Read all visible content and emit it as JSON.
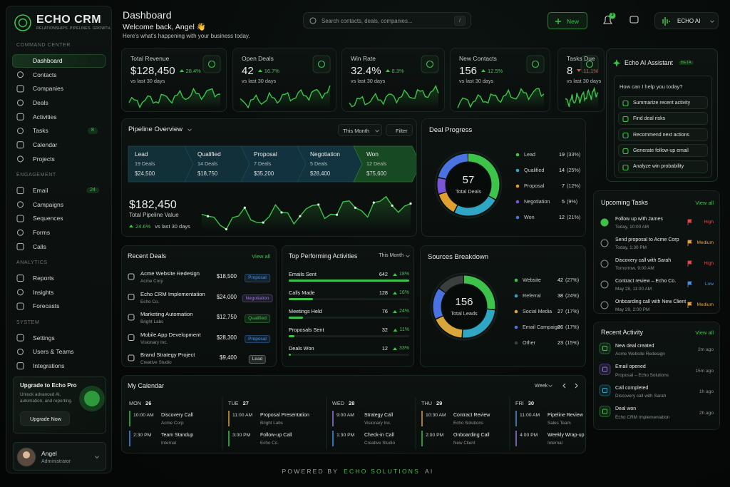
{
  "brand": {
    "name": "ECHO CRM",
    "tagline": "RELATIONSHIPS. PIPELINES. GROWTH."
  },
  "sidebar": {
    "sections": [
      {
        "title": "COMMAND CENTER",
        "items": [
          {
            "label": "Dashboard",
            "active": true
          },
          {
            "label": "Contacts"
          },
          {
            "label": "Companies"
          },
          {
            "label": "Deals"
          },
          {
            "label": "Activities"
          },
          {
            "label": "Tasks",
            "badge": 8
          },
          {
            "label": "Calendar"
          },
          {
            "label": "Projects"
          }
        ]
      },
      {
        "title": "ENGAGEMENT",
        "items": [
          {
            "label": "Email",
            "badge": 24
          },
          {
            "label": "Campaigns"
          },
          {
            "label": "Sequences"
          },
          {
            "label": "Forms"
          },
          {
            "label": "Calls"
          }
        ]
      },
      {
        "title": "ANALYTICS",
        "items": [
          {
            "label": "Reports"
          },
          {
            "label": "Insights"
          },
          {
            "label": "Forecasts"
          }
        ]
      },
      {
        "title": "SYSTEM",
        "items": [
          {
            "label": "Settings"
          },
          {
            "label": "Users & Teams"
          },
          {
            "label": "Integrations"
          }
        ]
      }
    ],
    "promo": {
      "title": "Upgrade to Echo Pro",
      "text": "Unlock advanced AI, automation, and reporting.",
      "button": "Upgrade Now"
    },
    "user": {
      "name": "Angel",
      "role": "Administrator"
    }
  },
  "header": {
    "title": "Dashboard",
    "welcome": "Welcome back, Angel 👋",
    "subtitle": "Here's what's happening with your business today.",
    "search": "Search contacts, deals, companies...",
    "shortcut": "/",
    "new_button": "New",
    "notifications": 3,
    "ai_button": "ECHO AI"
  },
  "kpis": [
    {
      "label": "Total Revenue",
      "value": "$128,450",
      "change": "28.4%",
      "trend": "up",
      "color": "#3ec34a",
      "period": "vs last 30 days"
    },
    {
      "label": "Open Deals",
      "value": 42,
      "change": "16.7%",
      "trend": "up",
      "color": "#3ec34a",
      "period": "vs last 30 days"
    },
    {
      "label": "Win Rate",
      "value": "32.4%",
      "change": "8.3%",
      "trend": "up",
      "color": "#3ec34a",
      "period": "vs last 30 days"
    },
    {
      "label": "New Contacts",
      "value": 156,
      "change": "12.5%",
      "trend": "up",
      "color": "#3ec34a",
      "period": "vs last 30 days"
    },
    {
      "label": "Tasks Due",
      "value": 8,
      "change": "11.1%",
      "trend": "down",
      "color": "#e5484d",
      "period": "vs last 30 days"
    }
  ],
  "pipeline": {
    "title": "Pipeline Overview",
    "period": "This Month",
    "filter": "Filter",
    "stages": [
      {
        "name": "Lead",
        "deals": "19 Deals",
        "amount": "$24,500"
      },
      {
        "name": "Qualified",
        "deals": "14 Deals",
        "amount": "$18,750"
      },
      {
        "name": "Proposal",
        "deals": "7 Deals",
        "amount": "$35,200"
      },
      {
        "name": "Negotiation",
        "deals": "5 Deals",
        "amount": "$28,400"
      },
      {
        "name": "Won",
        "deals": "12 Deals",
        "amount": "$75,600"
      }
    ],
    "total": "$182,450",
    "total_label": "Total Pipeline Value",
    "change": "24.6%",
    "period_note": "vs last 30 days"
  },
  "deal_progress": {
    "title": "Deal Progress",
    "total": 57,
    "total_label": "Total Deals",
    "segments": [
      {
        "name": "Lead",
        "value": 19,
        "share": "(33%)",
        "color": "#3ec34a"
      },
      {
        "name": "Qualified",
        "value": 14,
        "share": "(25%)",
        "color": "#2fa6c4"
      },
      {
        "name": "Proposal",
        "value": 7,
        "share": "(12%)",
        "color": "#e0a030"
      },
      {
        "name": "Negotiation",
        "value": 5,
        "share": "(9%)",
        "color": "#7a55d6"
      },
      {
        "name": "Won",
        "value": 12,
        "share": "(21%)",
        "color": "#4a72e0"
      }
    ]
  },
  "recent_deals": {
    "title": "Recent Deals",
    "link": "View all",
    "rows": [
      {
        "name": "Acme Website Redesign",
        "company": "Acme Corp",
        "amount": "$18,500",
        "stage": "Proposal",
        "stage_color": "#4a8fe7"
      },
      {
        "name": "Echo CRM Implementation",
        "company": "Echo Co.",
        "amount": "$24,000",
        "stage": "Negotiation",
        "stage_color": "#9a74e8"
      },
      {
        "name": "Marketing Automation",
        "company": "Bright Labs",
        "amount": "$12,750",
        "stage": "Qualified",
        "stage_color": "#3ec34a"
      },
      {
        "name": "Mobile App Development",
        "company": "Visionary Inc.",
        "amount": "$28,300",
        "stage": "Proposal",
        "stage_color": "#4a8fe7"
      },
      {
        "name": "Brand Strategy Project",
        "company": "Creative Studio",
        "amount": "$9,400",
        "stage": "Lead",
        "stage_color": "#c9cfcb"
      }
    ]
  },
  "top_activities": {
    "title": "Top Performing Activities",
    "period": "This Month",
    "rows": [
      {
        "name": "Emails Sent",
        "value": 642,
        "change": "18%"
      },
      {
        "name": "Calls Made",
        "value": 128,
        "change": "16%"
      },
      {
        "name": "Meetings Held",
        "value": 76,
        "change": "24%"
      },
      {
        "name": "Proposals Sent",
        "value": 32,
        "change": "11%"
      },
      {
        "name": "Deals Won",
        "value": 12,
        "change": "33%"
      }
    ]
  },
  "sources": {
    "title": "Sources Breakdown",
    "total": 156,
    "total_label": "Total Leads",
    "segments": [
      {
        "name": "Website",
        "value": 42,
        "share": "(27%)",
        "color": "#3ec34a"
      },
      {
        "name": "Referral",
        "value": 38,
        "share": "(24%)",
        "color": "#2fa6c4"
      },
      {
        "name": "Social Media",
        "value": 27,
        "share": "(17%)",
        "color": "#d9a63a"
      },
      {
        "name": "Email Campaign",
        "value": 26,
        "share": "(17%)",
        "color": "#4a72e0"
      },
      {
        "name": "Other",
        "value": 23,
        "share": "(15%)",
        "color": "#3a403d"
      }
    ]
  },
  "calendar": {
    "title": "My Calendar",
    "view": "Week",
    "days": [
      {
        "day": "MON",
        "date": 26,
        "events": [
          {
            "time": "10:00 AM",
            "title": "Discovery Call",
            "sub": "Acme Corp",
            "color": "#3ec34a"
          },
          {
            "time": "2:30 PM",
            "title": "Team Standup",
            "sub": "Internal",
            "color": "#4a8fe7"
          }
        ]
      },
      {
        "day": "TUE",
        "date": 27,
        "events": [
          {
            "time": "11:00 AM",
            "title": "Proposal Presentation",
            "sub": "Bright Labs",
            "color": "#e0a030"
          },
          {
            "time": "3:00 PM",
            "title": "Follow-up Call",
            "sub": "Echo Co.",
            "color": "#3ec34a"
          }
        ]
      },
      {
        "day": "WED",
        "date": 28,
        "events": [
          {
            "time": "9:00 AM",
            "title": "Strategy Call",
            "sub": "Visionary Inc.",
            "color": "#9a74e8"
          },
          {
            "time": "1:30 PM",
            "title": "Check-in Call",
            "sub": "Creative Studio",
            "color": "#4a8fe7"
          }
        ]
      },
      {
        "day": "THU",
        "date": 29,
        "events": [
          {
            "time": "10:30 AM",
            "title": "Contract Review",
            "sub": "Echo Solutions",
            "color": "#e0a030"
          },
          {
            "time": "2:00 PM",
            "title": "Onboarding Call",
            "sub": "New Client",
            "color": "#3ec34a"
          }
        ]
      },
      {
        "day": "FRI",
        "date": 30,
        "events": [
          {
            "time": "11:00 AM",
            "title": "Pipeline Review",
            "sub": "Sales Team",
            "color": "#4a8fe7"
          },
          {
            "time": "4:00 PM",
            "title": "Weekly Wrap-up",
            "sub": "Internal",
            "color": "#9a74e8"
          }
        ]
      }
    ]
  },
  "assistant": {
    "title": "Echo AI Assistant",
    "badge": "BETA",
    "prompt": "How can I help you today?",
    "actions": [
      "Summarize recent activity",
      "Find deal risks",
      "Recommend next actions",
      "Generate follow-up email",
      "Analyze win probability"
    ]
  },
  "tasks": {
    "title": "Upcoming Tasks",
    "link": "View all",
    "items": [
      {
        "title": "Follow up with James",
        "due": "Today, 10:00 AM",
        "priority": "High",
        "priority_color": "#e5484d",
        "done": true
      },
      {
        "title": "Send proposal to Acme Corp",
        "due": "Today, 1:30 PM",
        "priority": "Medium",
        "priority_color": "#e8a13a"
      },
      {
        "title": "Discovery call with Sarah",
        "due": "Tomorrow, 9:00 AM",
        "priority": "High",
        "priority_color": "#e5484d"
      },
      {
        "title": "Contract review – Echo Co.",
        "due": "May 28, 11:00 AM",
        "priority": "Low",
        "priority_color": "#4a8fe7"
      },
      {
        "title": "Onboarding call with New Client",
        "due": "May 29, 2:00 PM",
        "priority": "Medium",
        "priority_color": "#e8a13a"
      }
    ]
  },
  "activity": {
    "title": "Recent Activity",
    "link": "View all",
    "items": [
      {
        "title": "New deal created",
        "sub": "Acme Website Redesign",
        "time": "2m ago",
        "color": "#3ec34a"
      },
      {
        "title": "Email opened",
        "sub": "Proposal – Echo Solutions",
        "time": "15m ago",
        "color": "#9a74e8"
      },
      {
        "title": "Call completed",
        "sub": "Discovery call with Sarah",
        "time": "1h ago",
        "color": "#2fa6c4"
      },
      {
        "title": "Deal won",
        "sub": "Echo CRM Implementation",
        "time": "2h ago",
        "color": "#3ec34a"
      }
    ]
  },
  "footer": {
    "prefix": "POWERED BY",
    "brand": "ECHO SOLUTIONS",
    "suffix": "AI"
  }
}
